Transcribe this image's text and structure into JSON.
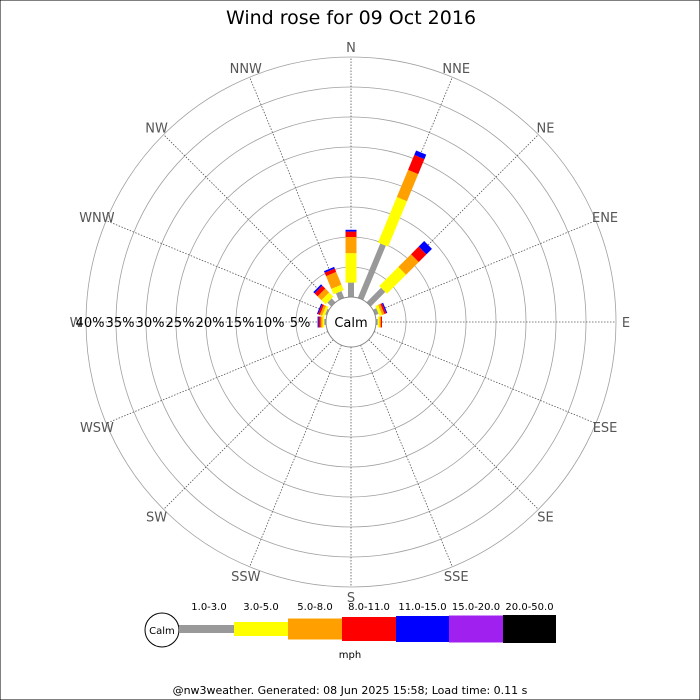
{
  "chart_data": {
    "type": "wind-rose",
    "title": "Wind rose for 09 Oct 2016",
    "directions": [
      "N",
      "NNE",
      "NE",
      "ENE",
      "E",
      "ESE",
      "SE",
      "SSE",
      "S",
      "SSW",
      "SW",
      "WSW",
      "W",
      "WNW",
      "NW",
      "NNW"
    ],
    "ring_labels": [
      "5%",
      "10%",
      "15%",
      "20%",
      "25%",
      "30%",
      "35%",
      "40%"
    ],
    "ring_max": 40,
    "calm_label": "Calm",
    "speed_bins": [
      {
        "label": "1.0-3.0",
        "color": "#999999"
      },
      {
        "label": "3.0-5.0",
        "color": "#ffff00"
      },
      {
        "label": "5.0-8.0",
        "color": "#ffa000"
      },
      {
        "label": "8.0-11.0",
        "color": "#ff0000"
      },
      {
        "label": "11.0-15.0",
        "color": "#0000ff"
      },
      {
        "label": "15.0-20.0",
        "color": "#a020f0"
      },
      {
        "label": "20.0-50.0",
        "color": "#000000"
      }
    ],
    "units": "mph",
    "series": [
      {
        "direction": "N",
        "values": [
          2.4,
          4.9,
          2.7,
          0.9,
          0.3,
          0,
          0
        ]
      },
      {
        "direction": "NNE",
        "values": [
          9.8,
          8.2,
          4.9,
          2.7,
          0.8,
          0,
          0
        ]
      },
      {
        "direction": "NE",
        "values": [
          3.4,
          4.5,
          3.0,
          1.8,
          1.3,
          0,
          0
        ]
      },
      {
        "direction": "ENE",
        "values": [
          0.6,
          0.5,
          0.4,
          0.3,
          0.2,
          0,
          0
        ]
      },
      {
        "direction": "E",
        "values": [
          0.3,
          0.3,
          0.2,
          0.2,
          0,
          0,
          0
        ]
      },
      {
        "direction": "W",
        "values": [
          0.3,
          0.3,
          0.3,
          0.3,
          0.2,
          0,
          0
        ]
      },
      {
        "direction": "WNW",
        "values": [
          0.3,
          0.4,
          0.4,
          0.3,
          0.2,
          0,
          0
        ]
      },
      {
        "direction": "NW",
        "values": [
          0.9,
          1.0,
          0.9,
          0.7,
          0.3,
          0,
          0
        ]
      },
      {
        "direction": "NNW",
        "values": [
          1.2,
          1.0,
          2.3,
          0.6,
          0.3,
          0,
          0
        ]
      }
    ]
  },
  "footer": "@nw3weather. Generated: 08 Jun 2025 15:58; Load time: 0.11 s"
}
